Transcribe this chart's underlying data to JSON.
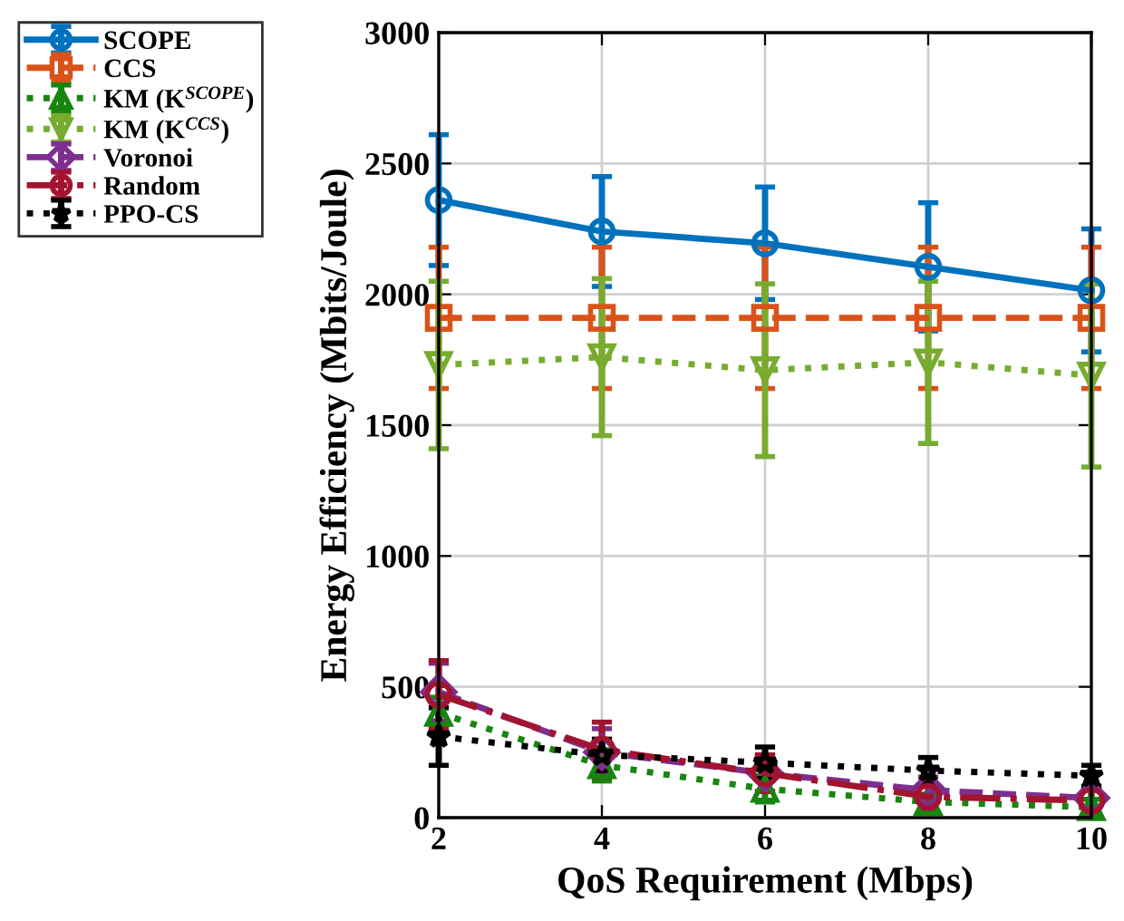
{
  "chart_data": {
    "type": "line",
    "xlabel": "QoS Requirement (Mbps)",
    "ylabel": "Energy Efficiency (Mbits/Joule)",
    "x": [
      2,
      4,
      6,
      8,
      10
    ],
    "xlim": [
      2,
      10
    ],
    "xticks": [
      2,
      4,
      6,
      8,
      10
    ],
    "ylim": [
      0,
      3000
    ],
    "yticks": [
      0,
      500,
      1000,
      1500,
      2000,
      2500,
      3000
    ],
    "grid": true,
    "legend": "top left",
    "series": [
      {
        "name": "SCOPE",
        "color": "#0072bd",
        "marker": "circle",
        "line_style": "solid",
        "values": [
          2360,
          2240,
          2195,
          2105,
          2015
        ],
        "errors": [
          250,
          210,
          215,
          245,
          235
        ]
      },
      {
        "name": "CCS",
        "color": "#d95319",
        "marker": "square",
        "line_style": "dashed",
        "values": [
          1910,
          1910,
          1910,
          1910,
          1910
        ],
        "errors": [
          270,
          270,
          270,
          270,
          270
        ]
      },
      {
        "name": "KM (K$^{SCOPE}$)",
        "color": "#17850e",
        "marker": "triangle",
        "line_style": "dotted",
        "values": [
          400,
          200,
          110,
          60,
          40
        ],
        "errors": [
          60,
          60,
          50,
          30,
          30
        ]
      },
      {
        "name": "KM (K$^{CCS}$)",
        "color": "#77ac30",
        "marker": "triangle_down",
        "line_style": "dotted",
        "values": [
          1730,
          1760,
          1710,
          1740,
          1690
        ],
        "errors": [
          320,
          300,
          330,
          310,
          350
        ]
      },
      {
        "name": "Voronoi",
        "color": "#7e2f8e",
        "marker": "diamond",
        "line_style": "dashed",
        "values": [
          480,
          250,
          170,
          105,
          75
        ],
        "errors": [
          110,
          90,
          70,
          50,
          40
        ]
      },
      {
        "name": "Random",
        "color": "#a2142f",
        "marker": "circle",
        "line_style": "dashdot",
        "values": [
          470,
          260,
          170,
          80,
          65
        ],
        "errors": [
          130,
          105,
          70,
          50,
          40
        ]
      },
      {
        "name": "PPO-CS",
        "color": "#000000",
        "marker": "star",
        "line_style": "dotted",
        "values": [
          310,
          240,
          210,
          180,
          160
        ],
        "errors": [
          110,
          60,
          60,
          50,
          40
        ]
      }
    ]
  }
}
